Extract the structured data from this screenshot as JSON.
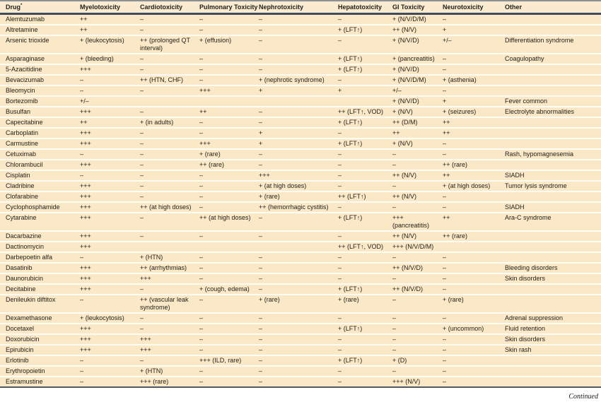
{
  "table": {
    "columns": [
      "Drug*",
      "Myelotoxicity",
      "Cardiotoxicity",
      "Pulmonary Toxicity",
      "Nephrotoxicity",
      "Hepatotoxicity",
      "GI Toxicity",
      "Neurotoxicity",
      "Other"
    ],
    "rows": [
      [
        "Alemtuzumab",
        "++",
        "–",
        "–",
        "–",
        "–",
        "+ (N/V/D/M)",
        "–",
        ""
      ],
      [
        "Altretamine",
        "++",
        "–",
        "–",
        "–",
        "+ (LFT↑)",
        "++ (N/V)",
        "+",
        ""
      ],
      [
        "Arsenic trioxide",
        "+ (leukocytosis)",
        "++ (prolonged QT interval)",
        "+ (effusion)",
        "–",
        "–",
        "+ (N/V/D)",
        "+/–",
        "Differentiation syndrome"
      ],
      [
        "Asparaginase",
        "+ (bleeding)",
        "–",
        "–",
        "–",
        "+ (LFT↑)",
        "+ (pancreatitis)",
        "–",
        "Coagulopathy"
      ],
      [
        "5-Azacitidine",
        "+++",
        "–",
        "–",
        "–",
        "+ (LFT↑)",
        "+ (N/V/D)",
        "–",
        ""
      ],
      [
        "Bevacizumab",
        "–",
        "++ (HTN, CHF)",
        "–",
        "+ (nephrotic syndrome)",
        "–",
        "+ (N/V/D/M)",
        "+ (asthenia)",
        ""
      ],
      [
        "Bleomycin",
        "–",
        "–",
        "+++",
        "+",
        "+",
        "+/–",
        "–",
        ""
      ],
      [
        "Bortezomib",
        "+/–",
        "",
        "",
        "",
        "",
        "+ (N/V/D)",
        "+",
        "Fever common"
      ],
      [
        "Busulfan",
        "+++",
        "–",
        "++",
        "–",
        "++ (LFT↑, VOD)",
        "+ (N/V)",
        "+ (seizures)",
        "Electrolyte abnormalities"
      ],
      [
        "Capecitabine",
        "++",
        "+ (in adults)",
        "–",
        "–",
        "+ (LFT↑)",
        "++ (D/M)",
        "++",
        ""
      ],
      [
        "Carboplatin",
        "+++",
        "–",
        "–",
        "+",
        "–",
        "++",
        "++",
        ""
      ],
      [
        "Carmustine",
        "+++",
        "–",
        "+++",
        "+",
        "+ (LFT↑)",
        "+ (N/V)",
        "–",
        ""
      ],
      [
        "Cetuximab",
        "–",
        "–",
        "+ (rare)",
        "–",
        "–",
        "–",
        "–",
        "Rash, hypomagnesemia"
      ],
      [
        "Chlorambucil",
        "+++",
        "–",
        "++ (rare)",
        "–",
        "–",
        "–",
        "++ (rare)",
        ""
      ],
      [
        "Cisplatin",
        "–",
        "–",
        "–",
        "+++",
        "–",
        "++ (N/V)",
        "++",
        "SIADH"
      ],
      [
        "Cladribine",
        "+++",
        "–",
        "–",
        "+ (at high doses)",
        "–",
        "–",
        "+ (at high doses)",
        "Tumor lysis syndrome"
      ],
      [
        "Clofarabine",
        "+++",
        "–",
        "–",
        "+ (rare)",
        "++ (LFT↑)",
        "++ (N/V)",
        "–",
        ""
      ],
      [
        "Cyclophosphamide",
        "+++",
        "++ (at high doses)",
        "–",
        "++ (hemorrhagic cystitis)",
        "–",
        "–",
        "–",
        "SIADH"
      ],
      [
        "Cytarabine",
        "+++",
        "–",
        "++ (at high doses)",
        "–",
        "+ (LFT↑)",
        "+++ (pancreatitis)",
        "++",
        "Ara-C syndrome"
      ],
      [
        "Dacarbazine",
        "+++",
        "–",
        "–",
        "–",
        "–",
        "++ (N/V)",
        "++ (rare)",
        ""
      ],
      [
        "Dactinomycin",
        "+++",
        "",
        "",
        "",
        "++ (LFT↑, VOD)",
        "+++ (N/V/D/M)",
        "",
        ""
      ],
      [
        "Darbepoetin alfa",
        "–",
        "+ (HTN)",
        "–",
        "–",
        "–",
        "–",
        "–",
        ""
      ],
      [
        "Dasatinib",
        "+++",
        "++ (arrhythmias)",
        "–",
        "–",
        "–",
        "++ (N/V/D)",
        "–",
        "Bleeding disorders"
      ],
      [
        "Daunorubicin",
        "+++",
        "+++",
        "–",
        "–",
        "–",
        "–",
        "–",
        "Skin disorders"
      ],
      [
        "Decitabine",
        "+++",
        "–",
        "+ (cough, edema)",
        "–",
        "+ (LFT↑)",
        "++ (N/V/D)",
        "–",
        ""
      ],
      [
        "Denileukin diftitox",
        "–",
        "++ (vascular leak syndrome)",
        "–",
        "+ (rare)",
        "+ (rare)",
        "–",
        "+ (rare)",
        ""
      ],
      [
        "Dexamethasone",
        "+ (leukocytosis)",
        "–",
        "–",
        "–",
        "–",
        "–",
        "–",
        "Adrenal suppression"
      ],
      [
        "Docetaxel",
        "+++",
        "–",
        "–",
        "–",
        "+ (LFT↑)",
        "–",
        "+ (uncommon)",
        "Fluid retention"
      ],
      [
        "Doxorubicin",
        "+++",
        "+++",
        "–",
        "–",
        "–",
        "–",
        "–",
        "Skin disorders"
      ],
      [
        "Epirubicin",
        "+++",
        "+++",
        "–",
        "–",
        "–",
        "–",
        "–",
        "Skin rash"
      ],
      [
        "Erlotinib",
        "–",
        "–",
        "+++ (ILD, rare)",
        "–",
        "+ (LFT↑)",
        "+ (D)",
        "–",
        ""
      ],
      [
        "Erythropoietin",
        "–",
        "+ (HTN)",
        "–",
        "–",
        "–",
        "–",
        "–",
        ""
      ],
      [
        "Estramustine",
        "–",
        "+++ (rare)",
        "–",
        "–",
        "–",
        "+++ (N/V)",
        "–",
        ""
      ]
    ]
  },
  "footer": {
    "continued": "Continued"
  },
  "colors": {
    "table_background": "#FAE8C7",
    "header_rule": "#3E4C59",
    "row_separator": "#FFFDF6",
    "top_rule": "#8B9094",
    "bottom_rule": "#4E5A63"
  }
}
